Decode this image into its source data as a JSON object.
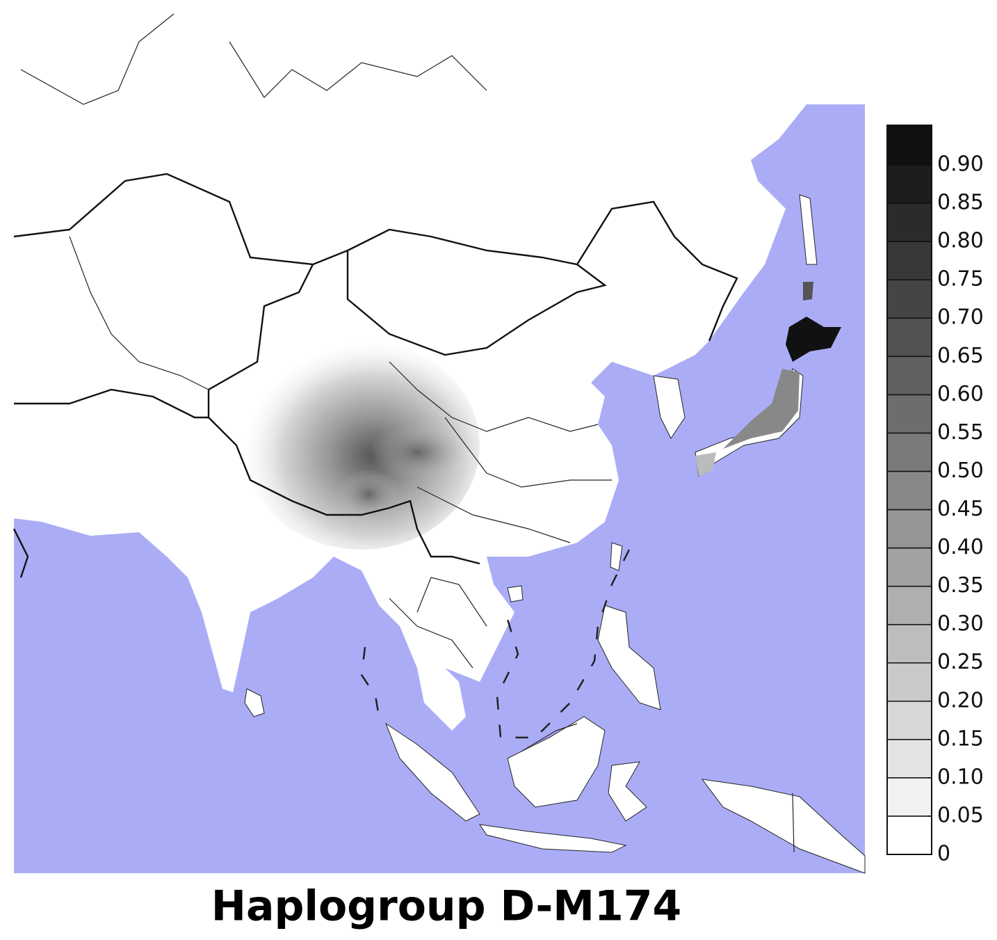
{
  "title": "Haplogroup D-M174",
  "colorbar": {
    "ticks": [
      0,
      0.05,
      {
        "value": 0.1,
        "label": "0.10"
      },
      0.15,
      {
        "value": 0.2,
        "label": "0.20"
      },
      0.25,
      {
        "value": 0.3,
        "label": "0.30"
      },
      0.35,
      {
        "value": 0.4,
        "label": "0.40"
      },
      0.45,
      {
        "value": 0.5,
        "label": "0.50"
      },
      0.55,
      {
        "value": 0.6,
        "label": "0.60"
      },
      0.65,
      {
        "value": 0.7,
        "label": "0.70"
      },
      0.75,
      {
        "value": 0.8,
        "label": "0.80"
      },
      0.85,
      {
        "value": 0.9,
        "label": "0.90"
      }
    ]
  }
}
